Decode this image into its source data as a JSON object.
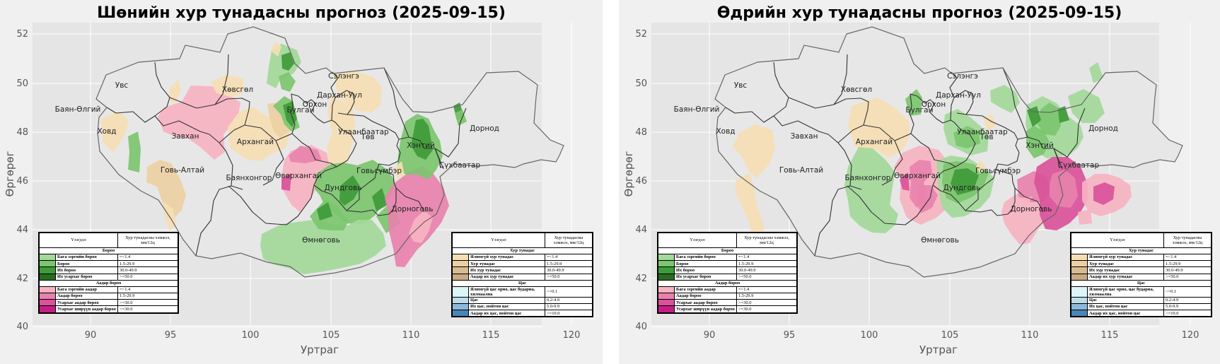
{
  "panels": [
    {
      "title": "Шөнийн хур тунадасны прогноз (2025-09-15)",
      "xlabel": "Уртраг",
      "ylabel": "Өргөрөг",
      "x_ticks": [
        "90",
        "95",
        "100",
        "105",
        "110",
        "115",
        "120"
      ],
      "y_ticks": [
        "52",
        "50",
        "48",
        "46",
        "44",
        "42",
        "40"
      ],
      "provinces": [
        "Увс",
        "Баян-Өлгий",
        "Ховд",
        "Завхан",
        "Говь-Алтай",
        "Хөвсгөл",
        "Архангай",
        "Булган",
        "Орхон",
        "Сэлэнгэ",
        "Дархан-Уул",
        "Төв",
        "Улаанбаатар",
        "Хэнтий",
        "Дорнод",
        "Сүхбаатар",
        "Говьсүмбэр",
        "Баянхонгор",
        "Өвөрхангай",
        "Дундговь",
        "Дорноговь",
        "Өмнөговь"
      ]
    },
    {
      "title": "Өдрийн хур тунадасны прогноз (2025-09-15)",
      "xlabel": "Уртраг",
      "ylabel": "Өргөрөг",
      "x_ticks": [
        "90",
        "95",
        "100",
        "105",
        "110",
        "115",
        "120"
      ],
      "y_ticks": [
        "52",
        "50",
        "48",
        "46",
        "44",
        "42",
        "40"
      ],
      "provinces": [
        "Увс",
        "Баян-Өлгий",
        "Ховд",
        "Завхан",
        "Говь-Алтай",
        "Хөвсгөл",
        "Архангай",
        "Булган",
        "Орхон",
        "Сэлэнгэ",
        "Дархан-Уул",
        "Төв",
        "Улаанбаатар",
        "Хэнтий",
        "Дорнод",
        "Сүхбаатар",
        "Говьсүмбэр",
        "Баянхонгор",
        "Өвөрхангай",
        "Дундговь",
        "Дорноговь",
        "Өмнөговь"
      ]
    }
  ],
  "legend_left": {
    "header_phenomenon": "Үзэгдэл",
    "header_amount": "Хур тунадасны хэмжээ, мм/12ц",
    "sections": [
      {
        "title": "Бороо",
        "rows": [
          {
            "label": "Бага зэргийн бороо",
            "value": "=<1.4",
            "color": "#a3d99a"
          },
          {
            "label": "Бороо",
            "value": "1.5-29.9",
            "color": "#7cc66f"
          },
          {
            "label": "Их бороо",
            "value": "30.0-49.9",
            "color": "#3f9a3a"
          },
          {
            "label": "Их усархаг бороо",
            "value": ">=50.0",
            "color": "#2a6b22"
          }
        ]
      },
      {
        "title": "Аадар бороо",
        "rows": [
          {
            "label": "Бага зэргийн аадар",
            "value": "=<1.4",
            "color": "#f7b3c2"
          },
          {
            "label": "Аадар бороо",
            "value": "1.5-29.9",
            "color": "#e882ad"
          },
          {
            "label": "Усархаг аадар бороо",
            "value": ">=30.0",
            "color": "#d9529a"
          },
          {
            "label": "Усархаг ширүүн аадар бороо",
            "value": ">=30.0",
            "color": "#c41e84"
          }
        ]
      }
    ]
  },
  "legend_right": {
    "header_phenomenon": "Үзэгдэл",
    "header_amount": "Хур тунадасны хэмжээ, мм/12ц",
    "sections": [
      {
        "title": "Хур тунадас",
        "rows": [
          {
            "label": "Ялимгүй хур тунадас",
            "value": "=<1.4",
            "color": "#f6deb4"
          },
          {
            "label": "Хур тунадас",
            "value": "1.5-29.9",
            "color": "#ecd0a4"
          },
          {
            "label": "Их хур тунадас",
            "value": "30.0-49.9",
            "color": "#d9bb92"
          },
          {
            "label": "Аадар их хур тунадас",
            "value": ">=50.0",
            "color": "#c9aa84"
          }
        ]
      },
      {
        "title": "Цас",
        "rows": [
          {
            "label": "Ялимгүй цас орно, цас бударна, хялмаална",
            "value": "<=0.1",
            "color": "#dcf6f8",
            "tall": true
          },
          {
            "label": "Цас",
            "value": "0.2-4.9",
            "color": "#bcdcea"
          },
          {
            "label": "Их цас, нойтон цас",
            "value": "5.0-9.9",
            "color": "#8db8d9"
          },
          {
            "label": "Аадар их цас, нойтон цас",
            "value": ">=10.0",
            "color": "#4a86b8"
          }
        ]
      }
    ]
  }
}
